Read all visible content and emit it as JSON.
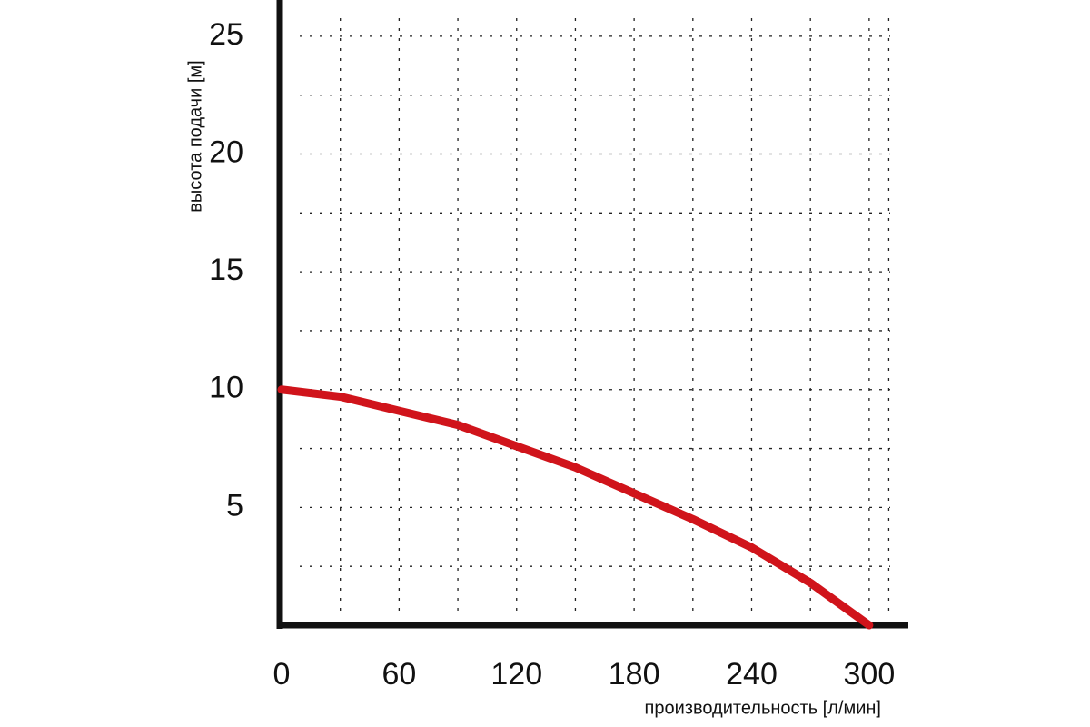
{
  "chart_data": {
    "type": "line",
    "x_label": "производительность [л/мин]",
    "y_label": "высота подачи [м]",
    "x": [
      0,
      30,
      60,
      90,
      120,
      150,
      180,
      210,
      240,
      270,
      300
    ],
    "values": [
      10,
      9.7,
      9.1,
      8.5,
      7.6,
      6.7,
      5.6,
      4.5,
      3.3,
      1.8,
      0
    ],
    "color": "#d0141b",
    "xlim": [
      0,
      320
    ],
    "ylim": [
      0,
      26.5
    ],
    "xticks": [
      0,
      60,
      120,
      180,
      240,
      300
    ],
    "yticks": [
      5,
      10,
      15,
      20,
      25
    ],
    "x_minor_ticks": [
      30,
      60,
      90,
      120,
      150,
      180,
      210,
      240,
      270,
      300,
      310
    ],
    "y_minor_ticks": [
      2.5,
      5,
      7.5,
      10,
      12.5,
      15,
      17.5,
      20,
      22.5,
      25
    ],
    "grid": true
  }
}
